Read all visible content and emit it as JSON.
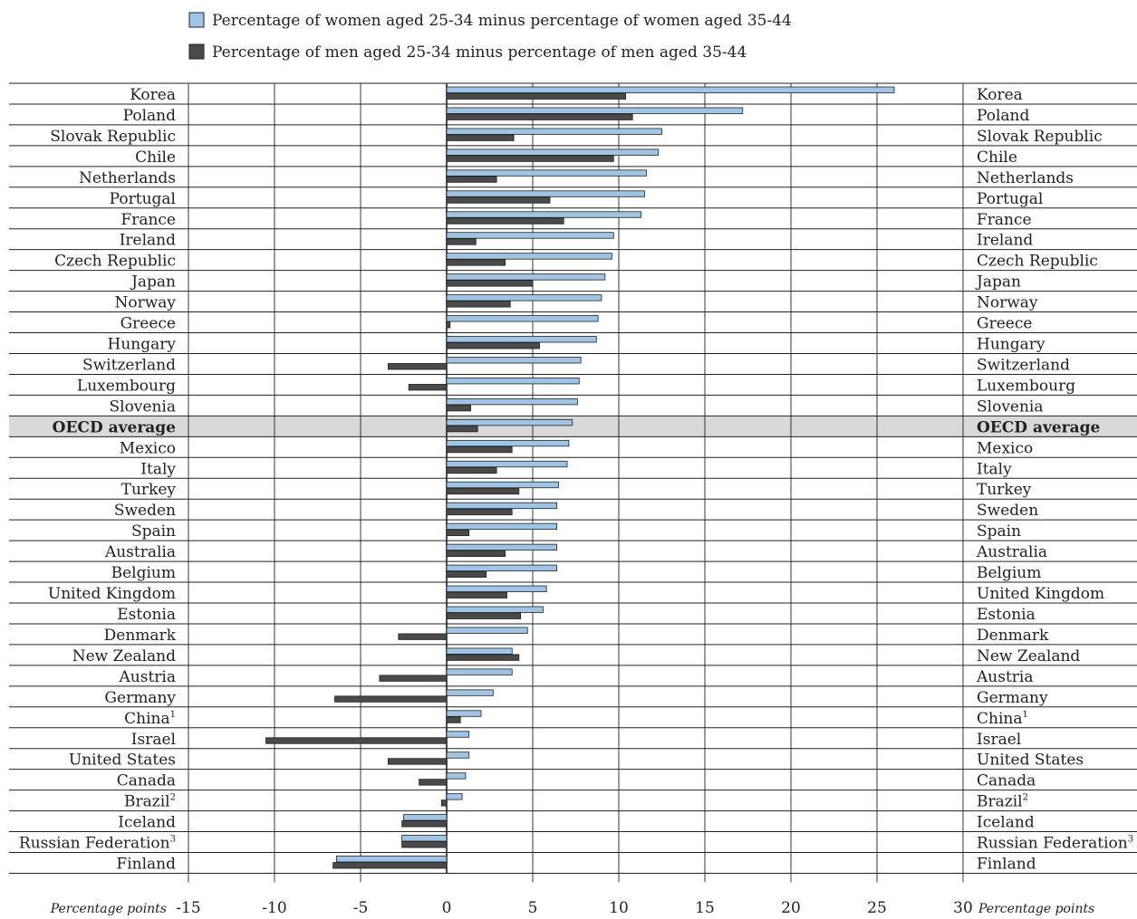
{
  "chart_data": {
    "type": "bar",
    "orientation": "horizontal",
    "legend": [
      {
        "label": "Percentage of women aged 25-34 minus percentage of women aged 35-44",
        "color": "#9ec5e5"
      },
      {
        "label": "Percentage of men aged 25-34 minus percentage of men aged 35-44",
        "color": "#4a4a4a"
      }
    ],
    "x_unit_label": "Percentage points",
    "xlim": [
      -15,
      30
    ],
    "xticks": [
      "-15",
      "-10",
      "-5",
      "0",
      "5",
      "10",
      "15",
      "20",
      "25",
      "30"
    ],
    "grid": true,
    "highlight_category": "OECD average",
    "categories": [
      {
        "name": "Korea",
        "sup": ""
      },
      {
        "name": "Poland",
        "sup": ""
      },
      {
        "name": "Slovak Republic",
        "sup": ""
      },
      {
        "name": "Chile",
        "sup": ""
      },
      {
        "name": "Netherlands",
        "sup": ""
      },
      {
        "name": "Portugal",
        "sup": ""
      },
      {
        "name": "France",
        "sup": ""
      },
      {
        "name": "Ireland",
        "sup": ""
      },
      {
        "name": "Czech Republic",
        "sup": ""
      },
      {
        "name": "Japan",
        "sup": ""
      },
      {
        "name": "Norway",
        "sup": ""
      },
      {
        "name": "Greece",
        "sup": ""
      },
      {
        "name": "Hungary",
        "sup": ""
      },
      {
        "name": "Switzerland",
        "sup": ""
      },
      {
        "name": "Luxembourg",
        "sup": ""
      },
      {
        "name": "Slovenia",
        "sup": ""
      },
      {
        "name": "OECD average",
        "sup": ""
      },
      {
        "name": "Mexico",
        "sup": ""
      },
      {
        "name": "Italy",
        "sup": ""
      },
      {
        "name": "Turkey",
        "sup": ""
      },
      {
        "name": "Sweden",
        "sup": ""
      },
      {
        "name": "Spain",
        "sup": ""
      },
      {
        "name": "Australia",
        "sup": ""
      },
      {
        "name": "Belgium",
        "sup": ""
      },
      {
        "name": "United Kingdom",
        "sup": ""
      },
      {
        "name": "Estonia",
        "sup": ""
      },
      {
        "name": "Denmark",
        "sup": ""
      },
      {
        "name": "New Zealand",
        "sup": ""
      },
      {
        "name": "Austria",
        "sup": ""
      },
      {
        "name": "Germany",
        "sup": ""
      },
      {
        "name": "China",
        "sup": "1"
      },
      {
        "name": "Israel",
        "sup": ""
      },
      {
        "name": "United States",
        "sup": ""
      },
      {
        "name": "Canada",
        "sup": ""
      },
      {
        "name": "Brazil",
        "sup": "2"
      },
      {
        "name": "Iceland",
        "sup": ""
      },
      {
        "name": "Russian Federation",
        "sup": "3"
      },
      {
        "name": "Finland",
        "sup": ""
      }
    ],
    "series": [
      {
        "name": "Percentage of women aged 25-34 minus percentage of women aged 35-44",
        "color": "#9ec5e5",
        "values": [
          26.0,
          17.2,
          12.5,
          12.3,
          11.6,
          11.5,
          11.3,
          9.7,
          9.6,
          9.2,
          9.0,
          8.8,
          8.7,
          7.8,
          7.7,
          7.6,
          7.3,
          7.1,
          7.0,
          6.5,
          6.4,
          6.4,
          6.4,
          6.4,
          5.8,
          5.6,
          4.7,
          3.8,
          3.8,
          2.7,
          2.0,
          1.3,
          1.3,
          1.1,
          0.9,
          -2.5,
          -2.6,
          -6.4
        ]
      },
      {
        "name": "Percentage of men aged 25-34 minus percentage of men aged 35-44",
        "color": "#4a4a4a",
        "values": [
          10.4,
          10.8,
          3.9,
          9.7,
          2.9,
          6.0,
          6.8,
          1.7,
          3.4,
          5.0,
          3.7,
          0.2,
          5.4,
          -3.4,
          -2.2,
          1.4,
          1.8,
          3.8,
          2.9,
          4.2,
          3.8,
          1.3,
          3.4,
          2.3,
          3.5,
          4.3,
          -2.8,
          4.2,
          -3.9,
          -6.5,
          0.8,
          -10.5,
          -3.4,
          -1.6,
          -0.3,
          -2.6,
          -2.6,
          -6.6
        ]
      }
    ]
  }
}
